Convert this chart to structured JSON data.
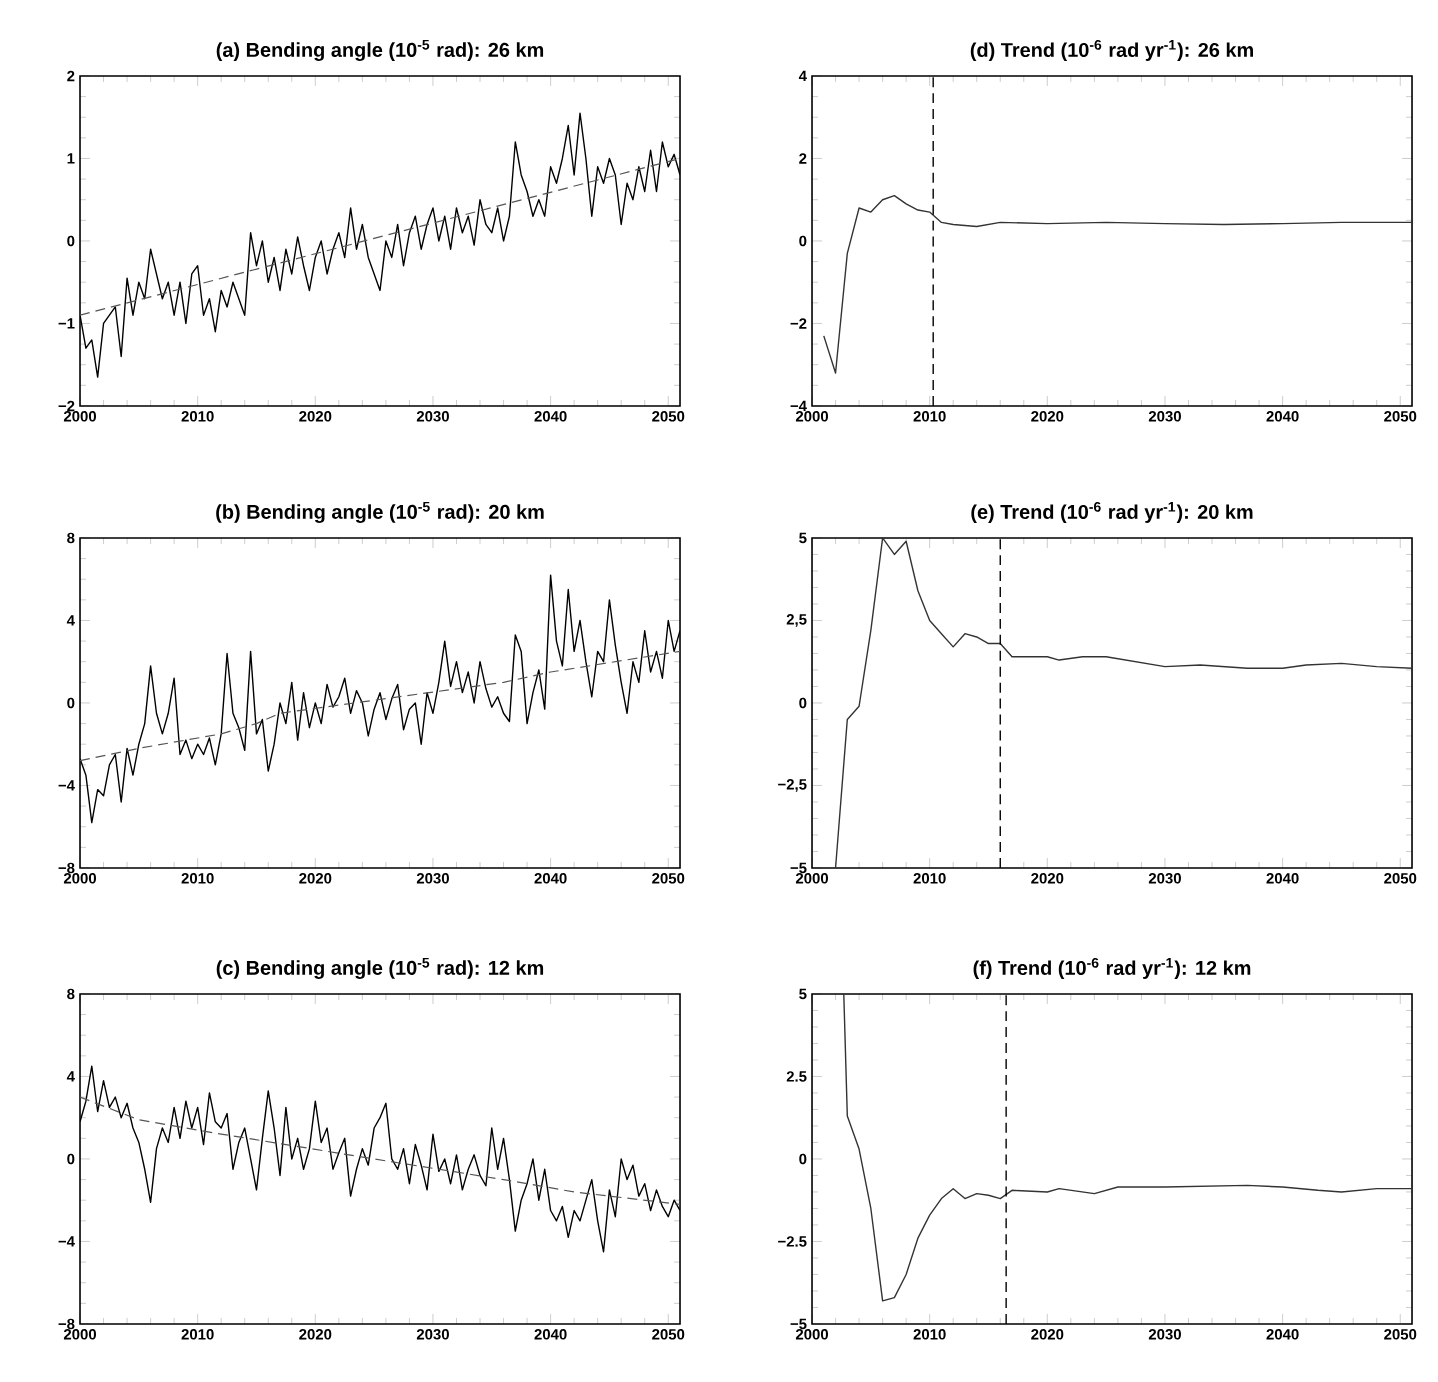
{
  "chart_data": [
    {
      "type": "line",
      "title": "(a) Bending angle (10$^{-5}$ rad): 26 km",
      "xlim": [
        2000,
        2051
      ],
      "xticks": [
        2000,
        2010,
        2020,
        2030,
        2040,
        2050
      ],
      "ylim": [
        -2,
        2
      ],
      "yticks": [
        {
          "value": -2,
          "label": "−2"
        },
        {
          "value": -1,
          "label": "−1"
        },
        0,
        1,
        2
      ],
      "series": [
        {
          "color": "#000000",
          "x": [
            2000,
            2000.5,
            2001,
            2001.5,
            2002,
            2002.5,
            2003,
            2003.5,
            2004,
            2004.5,
            2005,
            2005.5,
            2006,
            2006.5,
            2007,
            2007.5,
            2008,
            2008.5,
            2009,
            2009.5,
            2010,
            2010.5,
            2011,
            2011.5,
            2012,
            2012.5,
            2013,
            2013.5,
            2014,
            2014.5,
            2015,
            2015.5,
            2016,
            2016.5,
            2017,
            2017.5,
            2018,
            2018.5,
            2019,
            2019.5,
            2020,
            2020.5,
            2021,
            2021.5,
            2022,
            2022.5,
            2023,
            2023.5,
            2024,
            2024.5,
            2025,
            2025.5,
            2026,
            2026.5,
            2027,
            2027.5,
            2028,
            2028.5,
            2029,
            2029.5,
            2030,
            2030.5,
            2031,
            2031.5,
            2032,
            2032.5,
            2033,
            2033.5,
            2034,
            2034.5,
            2035,
            2035.5,
            2036,
            2036.5,
            2037,
            2037.5,
            2038,
            2038.5,
            2039,
            2039.5,
            2040,
            2040.5,
            2041,
            2041.5,
            2042,
            2042.5,
            2043,
            2043.5,
            2044,
            2044.5,
            2045,
            2045.5,
            2046,
            2046.5,
            2047,
            2047.5,
            2048,
            2048.5,
            2049,
            2049.5,
            2050,
            2050.5,
            2051
          ],
          "values": [
            -0.9,
            -1.3,
            -1.2,
            -1.65,
            -1.0,
            -0.9,
            -0.8,
            -1.4,
            -0.45,
            -0.9,
            -0.5,
            -0.7,
            -0.1,
            -0.4,
            -0.7,
            -0.5,
            -0.9,
            -0.5,
            -1.0,
            -0.4,
            -0.3,
            -0.9,
            -0.7,
            -1.1,
            -0.6,
            -0.8,
            -0.5,
            -0.7,
            -0.9,
            0.1,
            -0.3,
            0.0,
            -0.5,
            -0.2,
            -0.6,
            -0.1,
            -0.4,
            0.05,
            -0.3,
            -0.6,
            -0.2,
            0.0,
            -0.4,
            -0.1,
            0.1,
            -0.2,
            0.4,
            -0.1,
            0.2,
            -0.2,
            -0.4,
            -0.6,
            0.0,
            -0.2,
            0.2,
            -0.3,
            0.1,
            0.3,
            -0.1,
            0.2,
            0.4,
            0.0,
            0.3,
            -0.1,
            0.4,
            0.1,
            0.3,
            -0.05,
            0.5,
            0.2,
            0.1,
            0.4,
            0.0,
            0.3,
            1.2,
            0.8,
            0.6,
            0.3,
            0.5,
            0.3,
            0.9,
            0.7,
            1.0,
            1.4,
            0.8,
            1.55,
            1.0,
            0.3,
            0.9,
            0.7,
            1.0,
            0.8,
            0.2,
            0.7,
            0.5,
            0.9,
            0.6,
            1.1,
            0.6,
            1.2,
            0.9,
            1.05,
            0.8
          ]
        },
        {
          "color": "#555555",
          "line_style": "dashed",
          "x": [
            2000,
            2051
          ],
          "values": [
            -0.9,
            1.0
          ]
        }
      ]
    },
    {
      "type": "line",
      "title": "(d) Trend (10$^{-6}$ rad yr$^{-1}$): 26 km",
      "xlim": [
        2000,
        2051
      ],
      "xticks": [
        2000,
        2010,
        2020,
        2030,
        2040,
        2050
      ],
      "ylim": [
        -4,
        4
      ],
      "yticks": [
        {
          "value": -4,
          "label": "−4"
        },
        {
          "value": -2,
          "label": "−2"
        },
        0,
        2,
        4
      ],
      "series": [
        {
          "color": "#333333",
          "x": [
            2001,
            2002,
            2003,
            2004,
            2005,
            2006,
            2007,
            2008,
            2009,
            2010,
            2011,
            2012,
            2014,
            2016,
            2020,
            2025,
            2030,
            2035,
            2040,
            2045,
            2051
          ],
          "values": [
            -2.3,
            -3.2,
            -0.3,
            0.8,
            0.7,
            1.0,
            1.1,
            0.9,
            0.75,
            0.7,
            0.45,
            0.4,
            0.35,
            0.45,
            0.42,
            0.45,
            0.42,
            0.4,
            0.42,
            0.45,
            0.45
          ]
        }
      ],
      "ref_lines": [
        {
          "axis": "x",
          "value": 2010.3,
          "line_style": "dashed",
          "color": "#000000"
        }
      ]
    },
    {
      "type": "line",
      "title": "(b) Bending angle (10$^{-5}$ rad): 20 km",
      "xlim": [
        2000,
        2051
      ],
      "xticks": [
        2000,
        2010,
        2020,
        2030,
        2040,
        2050
      ],
      "ylim": [
        -8,
        8
      ],
      "yticks": [
        {
          "value": -8,
          "label": "−8"
        },
        {
          "value": -4,
          "label": "−4"
        },
        0,
        4,
        8
      ],
      "series": [
        {
          "color": "#000000",
          "x": [
            2000,
            2000.5,
            2001,
            2001.5,
            2002,
            2002.5,
            2003,
            2003.5,
            2004,
            2004.5,
            2005,
            2005.5,
            2006,
            2006.5,
            2007,
            2007.5,
            2008,
            2008.5,
            2009,
            2009.5,
            2010,
            2010.5,
            2011,
            2011.5,
            2012,
            2012.5,
            2013,
            2013.5,
            2014,
            2014.5,
            2015,
            2015.5,
            2016,
            2016.5,
            2017,
            2017.5,
            2018,
            2018.5,
            2019,
            2019.5,
            2020,
            2020.5,
            2021,
            2021.5,
            2022,
            2022.5,
            2023,
            2023.5,
            2024,
            2024.5,
            2025,
            2025.5,
            2026,
            2026.5,
            2027,
            2027.5,
            2028,
            2028.5,
            2029,
            2029.5,
            2030,
            2030.5,
            2031,
            2031.5,
            2032,
            2032.5,
            2033,
            2033.5,
            2034,
            2034.5,
            2035,
            2035.5,
            2036,
            2036.5,
            2037,
            2037.5,
            2038,
            2038.5,
            2039,
            2039.5,
            2040,
            2040.5,
            2041,
            2041.5,
            2042,
            2042.5,
            2043,
            2043.5,
            2044,
            2044.5,
            2045,
            2045.5,
            2046,
            2046.5,
            2047,
            2047.5,
            2048,
            2048.5,
            2049,
            2049.5,
            2050,
            2050.5,
            2051
          ],
          "values": [
            -2.7,
            -3.5,
            -5.8,
            -4.2,
            -4.5,
            -3.0,
            -2.5,
            -4.8,
            -2.2,
            -3.5,
            -2.0,
            -1.0,
            1.8,
            -0.5,
            -1.5,
            -0.5,
            1.2,
            -2.5,
            -1.8,
            -2.7,
            -2.0,
            -2.5,
            -1.7,
            -3.0,
            -1.5,
            2.4,
            -0.5,
            -1.2,
            -2.3,
            2.5,
            -1.5,
            -0.8,
            -3.3,
            -2.0,
            0.0,
            -1.0,
            1.0,
            -1.8,
            0.5,
            -1.2,
            0.0,
            -1.0,
            0.9,
            -0.2,
            0.3,
            1.2,
            -0.5,
            0.6,
            0.0,
            -1.6,
            -0.3,
            0.5,
            -0.8,
            0.2,
            0.9,
            -1.3,
            -0.3,
            0.0,
            -2.0,
            0.5,
            -0.5,
            1.0,
            3.0,
            0.8,
            2.0,
            0.5,
            1.5,
            0.0,
            2.0,
            0.7,
            -0.2,
            0.3,
            -0.5,
            -0.9,
            3.3,
            2.5,
            -1.0,
            0.5,
            1.6,
            -0.3,
            6.2,
            3.0,
            1.8,
            5.5,
            2.5,
            4.0,
            2.0,
            0.3,
            2.5,
            2.0,
            5.0,
            2.8,
            1.0,
            -0.5,
            2.0,
            1.0,
            3.5,
            1.5,
            2.5,
            1.2,
            4.0,
            2.5,
            3.5
          ]
        },
        {
          "color": "#555555",
          "line_style": "dashed",
          "x": [
            2000,
            2005,
            2012,
            2015,
            2017,
            2036,
            2040,
            2051
          ],
          "values": [
            -2.8,
            -2.2,
            -1.5,
            -1.0,
            -0.5,
            1.0,
            1.5,
            2.5
          ]
        }
      ]
    },
    {
      "type": "line",
      "title": "(e) Trend (10$^{-6}$ rad yr$^{-1}$): 20 km",
      "xlim": [
        2000,
        2051
      ],
      "xticks": [
        2000,
        2010,
        2020,
        2030,
        2040,
        2050
      ],
      "ylim": [
        -5,
        5
      ],
      "yticks": [
        {
          "value": -5,
          "label": "−5"
        },
        {
          "value": -2.5,
          "label": "−2,5"
        },
        0,
        {
          "value": 2.5,
          "label": "2,5"
        },
        5
      ],
      "series": [
        {
          "color": "#333333",
          "x": [
            2002,
            2003,
            2004,
            2005,
            2006,
            2007,
            2008,
            2009,
            2010,
            2011,
            2012,
            2013,
            2014,
            2015,
            2016,
            2017,
            2020,
            2021,
            2023,
            2025,
            2030,
            2033,
            2037,
            2040,
            2042,
            2045,
            2048,
            2051
          ],
          "values": [
            -5,
            -0.5,
            -0.1,
            2.2,
            5.0,
            4.5,
            4.9,
            3.4,
            2.5,
            2.1,
            1.7,
            2.1,
            2.0,
            1.8,
            1.8,
            1.4,
            1.4,
            1.3,
            1.4,
            1.4,
            1.1,
            1.15,
            1.05,
            1.05,
            1.15,
            1.2,
            1.1,
            1.05
          ]
        }
      ],
      "ref_lines": [
        {
          "axis": "x",
          "value": 2016,
          "line_style": "dashed",
          "color": "#000000"
        }
      ]
    },
    {
      "type": "line",
      "title": "(c) Bending angle (10$^{-5}$ rad): 12 km",
      "xlim": [
        2000,
        2051
      ],
      "xticks": [
        2000,
        2010,
        2020,
        2030,
        2040,
        2050
      ],
      "ylim": [
        -8,
        8
      ],
      "yticks": [
        {
          "value": -8,
          "label": "−8"
        },
        {
          "value": -4,
          "label": "−4"
        },
        0,
        4,
        8
      ],
      "series": [
        {
          "color": "#000000",
          "x": [
            2000,
            2000.5,
            2001,
            2001.5,
            2002,
            2002.5,
            2003,
            2003.5,
            2004,
            2004.5,
            2005,
            2005.5,
            2006,
            2006.5,
            2007,
            2007.5,
            2008,
            2008.5,
            2009,
            2009.5,
            2010,
            2010.5,
            2011,
            2011.5,
            2012,
            2012.5,
            2013,
            2013.5,
            2014,
            2014.5,
            2015,
            2015.5,
            2016,
            2016.5,
            2017,
            2017.5,
            2018,
            2018.5,
            2019,
            2019.5,
            2020,
            2020.5,
            2021,
            2021.5,
            2022,
            2022.5,
            2023,
            2023.5,
            2024,
            2024.5,
            2025,
            2025.5,
            2026,
            2026.5,
            2027,
            2027.5,
            2028,
            2028.5,
            2029,
            2029.5,
            2030,
            2030.5,
            2031,
            2031.5,
            2032,
            2032.5,
            2033,
            2033.5,
            2034,
            2034.5,
            2035,
            2035.5,
            2036,
            2036.5,
            2037,
            2037.5,
            2038,
            2038.5,
            2039,
            2039.5,
            2040,
            2040.5,
            2041,
            2041.5,
            2042,
            2042.5,
            2043,
            2043.5,
            2044,
            2044.5,
            2045,
            2045.5,
            2046,
            2046.5,
            2047,
            2047.5,
            2048,
            2048.5,
            2049,
            2049.5,
            2050,
            2050.5,
            2051
          ],
          "values": [
            1.8,
            2.8,
            4.5,
            2.3,
            3.8,
            2.5,
            3.0,
            2.0,
            2.7,
            1.5,
            0.8,
            -0.5,
            -2.1,
            0.5,
            1.5,
            0.8,
            2.5,
            1.0,
            2.8,
            1.5,
            2.5,
            0.7,
            3.2,
            1.8,
            1.5,
            2.2,
            -0.5,
            0.8,
            1.5,
            0.0,
            -1.5,
            1.0,
            3.3,
            1.5,
            -0.8,
            2.5,
            0.0,
            1.0,
            -0.5,
            0.5,
            2.8,
            0.8,
            1.5,
            -0.5,
            0.3,
            1.0,
            -1.8,
            -0.5,
            0.5,
            -0.3,
            1.5,
            2.0,
            2.7,
            0.0,
            -0.5,
            0.5,
            -1.2,
            0.7,
            -0.3,
            -1.5,
            1.2,
            -0.6,
            0.0,
            -1.2,
            0.2,
            -1.5,
            -0.5,
            0.2,
            -0.8,
            -1.3,
            1.5,
            -0.5,
            1.0,
            -1.0,
            -3.5,
            -2.0,
            -1.2,
            0.0,
            -2.0,
            -0.5,
            -2.5,
            -3.0,
            -2.3,
            -3.8,
            -2.5,
            -3.0,
            -2.0,
            -1.0,
            -3.0,
            -4.5,
            -1.5,
            -2.8,
            0.0,
            -1.0,
            -0.3,
            -1.8,
            -1.2,
            -2.5,
            -1.5,
            -2.3,
            -2.8,
            -2.0,
            -2.5
          ]
        },
        {
          "color": "#555555",
          "line_style": "dashed",
          "x": [
            2000,
            2005,
            2011,
            2025,
            2036,
            2042,
            2051
          ],
          "values": [
            3.0,
            1.9,
            1.3,
            0.0,
            -1.0,
            -1.6,
            -2.2
          ]
        }
      ]
    },
    {
      "type": "line",
      "title": "(f) Trend (10$^{-6}$ rad yr$^{-1}$): 12 km",
      "xlim": [
        2000,
        2051
      ],
      "xticks": [
        2000,
        2010,
        2020,
        2030,
        2040,
        2050
      ],
      "ylim": [
        -5,
        5
      ],
      "yticks": [
        {
          "value": -5,
          "label": "−5"
        },
        {
          "value": -2.5,
          "label": "−2.5"
        },
        0,
        2.5,
        5
      ],
      "series": [
        {
          "color": "#333333",
          "x": [
            2002.7,
            2003,
            2004,
            2005,
            2006,
            2007,
            2008,
            2009,
            2010,
            2011,
            2012,
            2013,
            2014,
            2015,
            2016,
            2017,
            2020,
            2021,
            2024,
            2026,
            2030,
            2037,
            2040,
            2043,
            2045,
            2048,
            2051
          ],
          "values": [
            5.0,
            1.3,
            0.3,
            -1.5,
            -4.3,
            -4.2,
            -3.5,
            -2.4,
            -1.7,
            -1.2,
            -0.9,
            -1.2,
            -1.05,
            -1.1,
            -1.2,
            -0.95,
            -1.0,
            -0.9,
            -1.05,
            -0.85,
            -0.85,
            -0.8,
            -0.85,
            -0.95,
            -1.0,
            -0.9,
            -0.9
          ]
        }
      ],
      "ref_lines": [
        {
          "axis": "x",
          "value": 2016.5,
          "line_style": "dashed",
          "color": "#000000"
        }
      ]
    }
  ]
}
